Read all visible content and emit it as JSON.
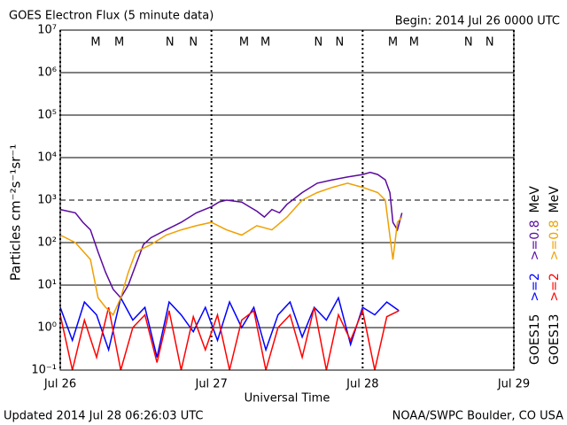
{
  "chart_data": {
    "type": "line",
    "title": "GOES Electron Flux (5 minute data)",
    "subtitle": "Begin: 2014 Jul 26 0000 UTC",
    "ylabel": "Particles cm⁻²s⁻¹sr⁻¹",
    "xlabel": "Universal Time",
    "footer_left": "Updated 2014 Jul 28 06:26:03 UTC",
    "footer_right": "NOAA/SWPC Boulder, CO USA",
    "log_y": true,
    "grid": true,
    "xlim": [
      0,
      3
    ],
    "xticks": [
      {
        "value": 0,
        "label": "Jul 26"
      },
      {
        "value": 1,
        "label": "Jul 27"
      },
      {
        "value": 2,
        "label": "Jul 28"
      },
      {
        "value": 3,
        "label": "Jul 29"
      }
    ],
    "ylim": [
      0.1,
      10000000
    ],
    "yticks": [
      {
        "value": 0.1,
        "label": "10⁻¹"
      },
      {
        "value": 1,
        "label": "10⁰"
      },
      {
        "value": 10,
        "label": "10¹"
      },
      {
        "value": 100,
        "label": "10²"
      },
      {
        "value": 1000,
        "label": "10³"
      },
      {
        "value": 10000,
        "label": "10⁴"
      },
      {
        "value": 100000,
        "label": "10⁵"
      },
      {
        "value": 1000000,
        "label": "10⁶"
      },
      {
        "value": 10000000,
        "label": "10⁷"
      }
    ],
    "threshold": 1000,
    "unit": "MeV",
    "markers": [
      {
        "label": "M",
        "x": 0.234,
        "color": "#e00000"
      },
      {
        "label": "M",
        "x": 0.39,
        "color": "#0000e0"
      },
      {
        "label": "N",
        "x": 0.725,
        "color": "#e00000"
      },
      {
        "label": "N",
        "x": 0.88,
        "color": "#0000e0"
      },
      {
        "label": "M",
        "x": 1.216,
        "color": "#e00000"
      },
      {
        "label": "M",
        "x": 1.357,
        "color": "#0000e0"
      },
      {
        "label": "N",
        "x": 1.707,
        "color": "#e00000"
      },
      {
        "label": "N",
        "x": 1.848,
        "color": "#0000e0"
      },
      {
        "label": "M",
        "x": 2.2,
        "color": "#e00000"
      },
      {
        "label": "M",
        "x": 2.34,
        "color": "#0000e0"
      },
      {
        "label": "N",
        "x": 2.7,
        "color": "#e00000"
      },
      {
        "label": "N",
        "x": 2.84,
        "color": "#0000e0"
      }
    ],
    "series": [
      {
        "name": ">=2",
        "satellite": "GOES15",
        "color": "#0000ff",
        "x": [
          0,
          0.08,
          0.16,
          0.24,
          0.32,
          0.4,
          0.48,
          0.56,
          0.64,
          0.72,
          0.8,
          0.88,
          0.96,
          1.04,
          1.12,
          1.2,
          1.28,
          1.36,
          1.44,
          1.52,
          1.6,
          1.68,
          1.76,
          1.84,
          1.92,
          2.0,
          2.08,
          2.16,
          2.24
        ],
        "values": [
          3,
          0.5,
          4,
          2,
          0.3,
          5,
          1.5,
          3,
          0.2,
          4,
          2,
          0.8,
          3,
          0.5,
          4,
          1,
          3,
          0.3,
          2,
          4,
          0.6,
          3,
          1.5,
          5,
          0.4,
          3,
          2,
          4,
          2.5
        ]
      },
      {
        "name": ">=2",
        "satellite": "GOES13",
        "color": "#ff0000",
        "x": [
          0,
          0.08,
          0.16,
          0.24,
          0.32,
          0.4,
          0.48,
          0.56,
          0.64,
          0.72,
          0.8,
          0.88,
          0.96,
          1.04,
          1.12,
          1.2,
          1.28,
          1.36,
          1.44,
          1.52,
          1.6,
          1.68,
          1.76,
          1.84,
          1.92,
          2.0,
          2.08,
          2.16,
          2.24
        ],
        "values": [
          2,
          0.1,
          1.5,
          0.2,
          3,
          0.1,
          1,
          2,
          0.15,
          2.5,
          0.1,
          1.8,
          0.3,
          2,
          0.1,
          1.5,
          2.5,
          0.1,
          1,
          2,
          0.2,
          3,
          0.1,
          2,
          0.5,
          2.5,
          0.1,
          1.8,
          2.5
        ]
      },
      {
        "name": ">=0.8",
        "satellite": "GOES15",
        "color": "#5a0aa0",
        "x": [
          0,
          0.1,
          0.15,
          0.2,
          0.25,
          0.3,
          0.35,
          0.4,
          0.45,
          0.5,
          0.55,
          0.6,
          0.7,
          0.8,
          0.9,
          1.0,
          1.05,
          1.1,
          1.2,
          1.25,
          1.3,
          1.35,
          1.4,
          1.45,
          1.5,
          1.6,
          1.7,
          1.8,
          1.9,
          2.0,
          2.05,
          2.1,
          2.15,
          2.18,
          2.2,
          2.23,
          2.26
        ],
        "values": [
          600,
          500,
          300,
          200,
          60,
          20,
          8,
          5,
          10,
          30,
          90,
          130,
          200,
          300,
          500,
          700,
          900,
          1000,
          900,
          700,
          550,
          400,
          600,
          500,
          800,
          1500,
          2500,
          3000,
          3500,
          4000,
          4500,
          4000,
          3000,
          1500,
          300,
          200,
          500
        ]
      },
      {
        "name": ">=0.8",
        "satellite": "GOES13",
        "color": "#f0a000",
        "x": [
          0,
          0.1,
          0.2,
          0.25,
          0.3,
          0.35,
          0.4,
          0.45,
          0.5,
          0.6,
          0.7,
          0.8,
          0.9,
          1.0,
          1.1,
          1.2,
          1.3,
          1.4,
          1.5,
          1.6,
          1.7,
          1.8,
          1.9,
          2.0,
          2.1,
          2.15,
          2.2,
          2.23,
          2.26
        ],
        "values": [
          150,
          100,
          40,
          5,
          3,
          2,
          5,
          20,
          60,
          90,
          150,
          200,
          250,
          300,
          200,
          150,
          250,
          200,
          400,
          1000,
          1500,
          2000,
          2500,
          2000,
          1500,
          1000,
          40,
          300,
          400
        ]
      }
    ]
  }
}
